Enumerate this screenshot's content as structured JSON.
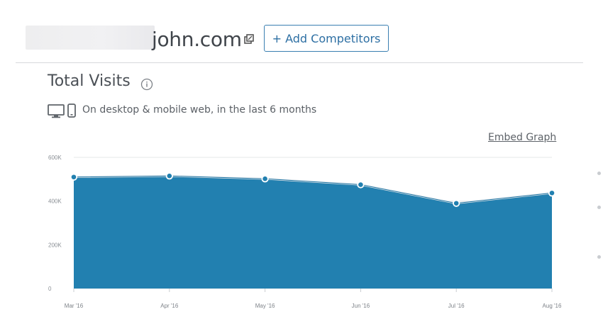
{
  "header": {
    "site_name": "john.com",
    "add_competitors_label": "+ Add Competitors"
  },
  "widget": {
    "title": "Total Visits",
    "subtitle": "On desktop & mobile web, in the last 6 months",
    "embed_label": "Embed Graph"
  },
  "icons": {
    "external_link": "external-link-icon",
    "info": "info-icon",
    "desktop": "desktop-icon",
    "mobile": "mobile-icon"
  },
  "colors": {
    "area_fill": "#2280b0",
    "button_accent": "#3a7fb1",
    "grid": "#e6e8ea"
  },
  "chart_data": {
    "type": "area",
    "title": "Total Visits",
    "categories": [
      "Mar '16",
      "Apr '16",
      "May '16",
      "Jun '16",
      "Jul '16",
      "Aug '16"
    ],
    "values": [
      510000,
      515000,
      502000,
      475000,
      390000,
      437000
    ],
    "y_ticks": [
      "0",
      "200K",
      "400K",
      "600K"
    ],
    "ylim": [
      0,
      600000
    ],
    "grid": true,
    "legend": "none"
  }
}
